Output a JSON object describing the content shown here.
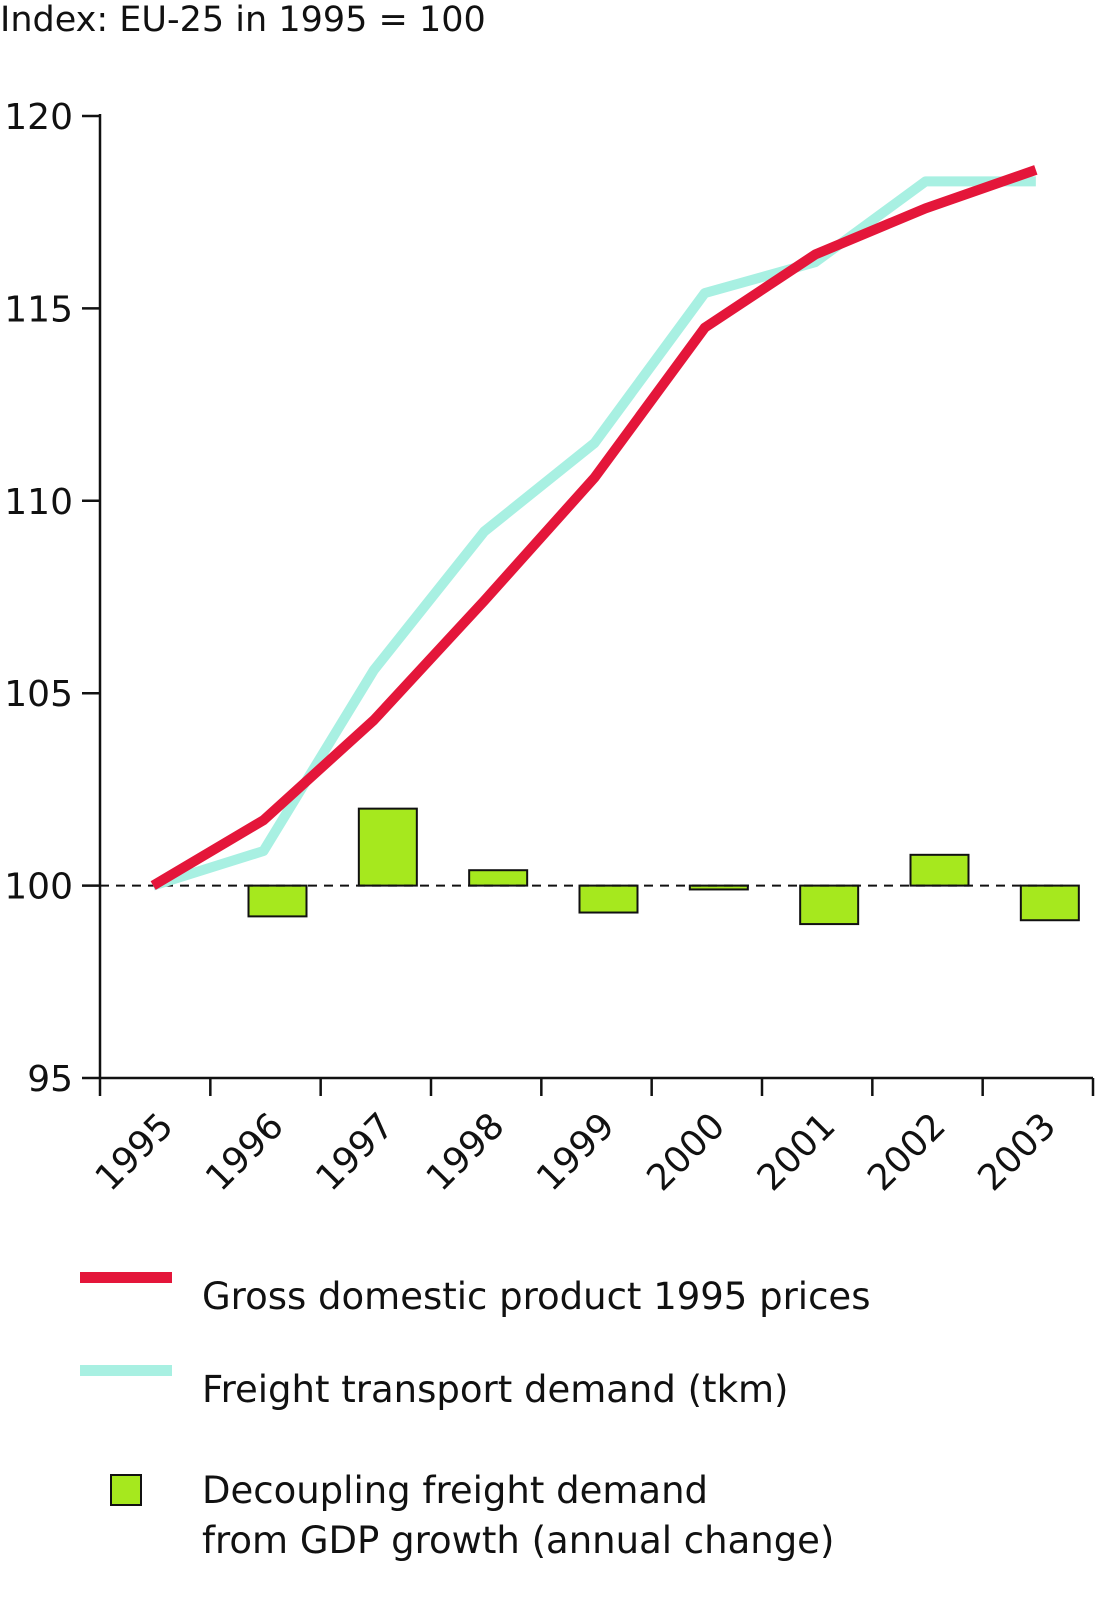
{
  "chart_data": {
    "type": "line",
    "title": "",
    "ylabel": "Index: EU-25 in 1995 = 100",
    "xlabel": "",
    "categories": [
      "1995",
      "1996",
      "1997",
      "1998",
      "1999",
      "2000",
      "2001",
      "2002",
      "2003"
    ],
    "ylim": [
      95,
      120
    ],
    "yticks": [
      95,
      100,
      105,
      110,
      115,
      120
    ],
    "baseline": 100,
    "series": [
      {
        "name": "Gross domestic product 1995 prices",
        "kind": "line",
        "color": "#e4163a",
        "values": [
          100.0,
          101.7,
          104.3,
          107.4,
          110.6,
          114.5,
          116.4,
          117.6,
          118.6
        ]
      },
      {
        "name": "Freight transport demand (tkm)",
        "kind": "line",
        "color": "#a8f0e2",
        "values": [
          100.0,
          100.9,
          105.6,
          109.2,
          111.5,
          115.4,
          116.2,
          118.3,
          118.3
        ]
      },
      {
        "name": "Decoupling freight demand from GDP growth (annual change)",
        "kind": "bar",
        "color": "#a6e81e",
        "values": [
          null,
          -0.8,
          2.0,
          0.4,
          -0.7,
          -0.1,
          -1.0,
          0.8,
          -0.9
        ]
      }
    ],
    "legend_position": "bottom",
    "grid": false
  },
  "legend": {
    "gdp": "Gross domestic product 1995 prices",
    "freight": "Freight transport demand (tkm)",
    "decoupling_line1": "Decoupling freight demand",
    "decoupling_line2": "from GDP growth (annual change)"
  }
}
